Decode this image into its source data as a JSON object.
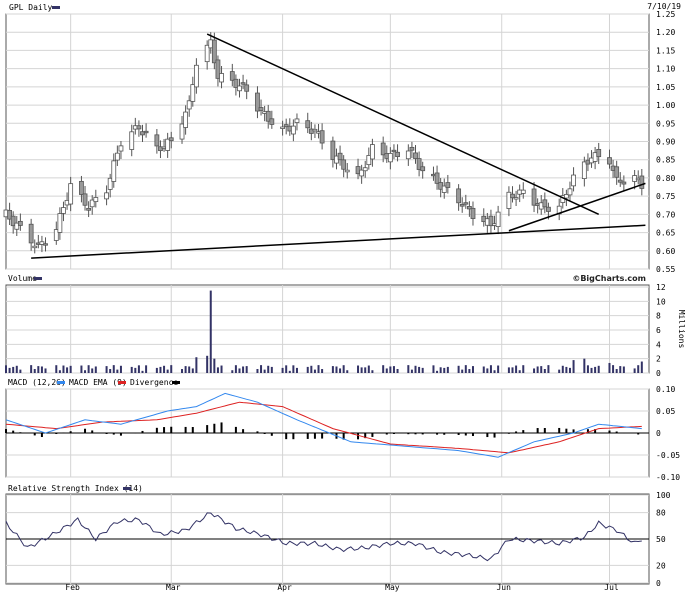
{
  "header": {
    "ticker_label": "GPL Daily",
    "date": "7/10/19",
    "source": "©BigCharts.com"
  },
  "legend_colors": {
    "price": "#333366",
    "volume": "#333366",
    "macd": "#3388ee",
    "macd_ema": "#dd2222",
    "divergence": "#000000",
    "rsi": "#333366"
  },
  "chart_data": [
    {
      "type": "candlestick",
      "title": "GPL Daily",
      "ylim": [
        0.55,
        1.25
      ],
      "y_ticks": [
        "1.25",
        "1.20",
        "1.15",
        "1.10",
        "1.05",
        "1.00",
        "0.95",
        "0.90",
        "0.85",
        "0.80",
        "0.75",
        "0.70",
        "0.65",
        "0.60",
        "0.55"
      ],
      "x_ticks": [
        "Feb",
        "Mar",
        "Apr",
        "May",
        "Jun",
        "Jul"
      ],
      "grid": true,
      "series_points": [
        {
          "date": "2019-01-14",
          "close": 0.7
        },
        {
          "date": "2019-01-18",
          "close": 0.66
        },
        {
          "date": "2019-01-23",
          "close": 0.61
        },
        {
          "date": "2019-01-28",
          "close": 0.66
        },
        {
          "date": "2019-02-01",
          "close": 0.78
        },
        {
          "date": "2019-02-06",
          "close": 0.72
        },
        {
          "date": "2019-02-11",
          "close": 0.77
        },
        {
          "date": "2019-02-15",
          "close": 0.9
        },
        {
          "date": "2019-02-20",
          "close": 0.94
        },
        {
          "date": "2019-02-25",
          "close": 0.88
        },
        {
          "date": "2019-03-01",
          "close": 0.9
        },
        {
          "date": "2019-03-06",
          "close": 1.0
        },
        {
          "date": "2019-03-08",
          "close": 1.12
        },
        {
          "date": "2019-03-12",
          "close": 1.17
        },
        {
          "date": "2019-03-14",
          "close": 1.08
        },
        {
          "date": "2019-03-19",
          "close": 1.06
        },
        {
          "date": "2019-03-22",
          "close": 1.04
        },
        {
          "date": "2019-03-26",
          "close": 0.98
        },
        {
          "date": "2019-04-01",
          "close": 0.93
        },
        {
          "date": "2019-04-05",
          "close": 0.95
        },
        {
          "date": "2019-04-10",
          "close": 0.93
        },
        {
          "date": "2019-04-15",
          "close": 0.86
        },
        {
          "date": "2019-04-22",
          "close": 0.8
        },
        {
          "date": "2019-04-26",
          "close": 0.88
        },
        {
          "date": "2019-05-01",
          "close": 0.86
        },
        {
          "date": "2019-05-06",
          "close": 0.88
        },
        {
          "date": "2019-05-10",
          "close": 0.82
        },
        {
          "date": "2019-05-15",
          "close": 0.78
        },
        {
          "date": "2019-05-20",
          "close": 0.74
        },
        {
          "date": "2019-05-24",
          "close": 0.7
        },
        {
          "date": "2019-05-29",
          "close": 0.67
        },
        {
          "date": "2019-06-03",
          "close": 0.75
        },
        {
          "date": "2019-06-07",
          "close": 0.76
        },
        {
          "date": "2019-06-12",
          "close": 0.72
        },
        {
          "date": "2019-06-17",
          "close": 0.72
        },
        {
          "date": "2019-06-21",
          "close": 0.8
        },
        {
          "date": "2019-06-26",
          "close": 0.86
        },
        {
          "date": "2019-07-01",
          "close": 0.85
        },
        {
          "date": "2019-07-03",
          "close": 0.79
        },
        {
          "date": "2019-07-08",
          "close": 0.8
        },
        {
          "date": "2019-07-10",
          "close": 0.78
        }
      ],
      "trend_lines": [
        {
          "from": {
            "date": "2019-01-21",
            "price": 0.58
          },
          "to": {
            "date": "2019-07-11",
            "price": 0.67
          }
        },
        {
          "from": {
            "date": "2019-03-11",
            "price": 1.195
          },
          "to": {
            "date": "2019-06-28",
            "price": 0.7
          }
        },
        {
          "from": {
            "date": "2019-06-03",
            "price": 0.655
          },
          "to": {
            "date": "2019-07-11",
            "price": 0.785
          }
        }
      ]
    },
    {
      "type": "bar",
      "title": "Volume",
      "ylabel": "Millions",
      "ylim": [
        0,
        12
      ],
      "y_ticks": [
        "12",
        "10",
        "8",
        "6",
        "4",
        "2",
        "0"
      ],
      "x": [
        "2019-03-08",
        "2019-03-11",
        "2019-03-12",
        "2019-03-13",
        "2019-02-01",
        "2019-05-15",
        "2019-06-21",
        "2019-06-24",
        "2019-07-01",
        "2019-07-10"
      ],
      "values": [
        2.2,
        2.4,
        11.5,
        2.0,
        1.0,
        0.8,
        1.8,
        2.0,
        1.4,
        1.6
      ],
      "baseline_volume_range": [
        0.3,
        1.1
      ]
    },
    {
      "type": "line",
      "title": "MACD (12,26)",
      "ylim": [
        -0.1,
        0.1
      ],
      "y_ticks": [
        "0.10",
        "0.05",
        "0",
        "-0.05",
        "-0.10"
      ],
      "series": [
        {
          "name": "MACD (12,26)",
          "points": [
            {
              "date": "2019-01-14",
              "v": 0.03
            },
            {
              "date": "2019-01-25",
              "v": 0.0
            },
            {
              "date": "2019-02-05",
              "v": 0.03
            },
            {
              "date": "2019-02-15",
              "v": 0.02
            },
            {
              "date": "2019-02-28",
              "v": 0.05
            },
            {
              "date": "2019-03-08",
              "v": 0.06
            },
            {
              "date": "2019-03-16",
              "v": 0.09
            },
            {
              "date": "2019-03-25",
              "v": 0.07
            },
            {
              "date": "2019-04-05",
              "v": 0.03
            },
            {
              "date": "2019-04-20",
              "v": -0.02
            },
            {
              "date": "2019-05-05",
              "v": -0.03
            },
            {
              "date": "2019-05-20",
              "v": -0.04
            },
            {
              "date": "2019-05-31",
              "v": -0.055
            },
            {
              "date": "2019-06-10",
              "v": -0.02
            },
            {
              "date": "2019-06-21",
              "v": 0.0
            },
            {
              "date": "2019-06-28",
              "v": 0.02
            },
            {
              "date": "2019-07-10",
              "v": 0.01
            }
          ]
        },
        {
          "name": "EMA (9)",
          "points": [
            {
              "date": "2019-01-14",
              "v": 0.02
            },
            {
              "date": "2019-01-28",
              "v": 0.01
            },
            {
              "date": "2019-02-10",
              "v": 0.025
            },
            {
              "date": "2019-02-25",
              "v": 0.03
            },
            {
              "date": "2019-03-08",
              "v": 0.045
            },
            {
              "date": "2019-03-20",
              "v": 0.07
            },
            {
              "date": "2019-04-01",
              "v": 0.06
            },
            {
              "date": "2019-04-15",
              "v": 0.01
            },
            {
              "date": "2019-05-01",
              "v": -0.025
            },
            {
              "date": "2019-05-20",
              "v": -0.035
            },
            {
              "date": "2019-06-03",
              "v": -0.045
            },
            {
              "date": "2019-06-17",
              "v": -0.02
            },
            {
              "date": "2019-06-28",
              "v": 0.01
            },
            {
              "date": "2019-07-10",
              "v": 0.015
            }
          ]
        }
      ],
      "divergence_label": "Divergence"
    },
    {
      "type": "line",
      "title": "Relative Strength Index (14)",
      "ylim": [
        0,
        100
      ],
      "y_ticks": [
        "100",
        "80",
        "50",
        "20",
        "0"
      ],
      "reference_line": 50,
      "series": [
        {
          "name": "Relative Strength Index (14)",
          "points": [
            {
              "date": "2019-01-14",
              "v": 68
            },
            {
              "date": "2019-01-20",
              "v": 40
            },
            {
              "date": "2019-01-27",
              "v": 55
            },
            {
              "date": "2019-02-03",
              "v": 72
            },
            {
              "date": "2019-02-08",
              "v": 50
            },
            {
              "date": "2019-02-14",
              "v": 70
            },
            {
              "date": "2019-02-20",
              "v": 72
            },
            {
              "date": "2019-02-26",
              "v": 55
            },
            {
              "date": "2019-03-05",
              "v": 60
            },
            {
              "date": "2019-03-12",
              "v": 80
            },
            {
              "date": "2019-03-19",
              "v": 62
            },
            {
              "date": "2019-03-26",
              "v": 55
            },
            {
              "date": "2019-04-02",
              "v": 45
            },
            {
              "date": "2019-04-10",
              "v": 45
            },
            {
              "date": "2019-04-17",
              "v": 38
            },
            {
              "date": "2019-04-24",
              "v": 40
            },
            {
              "date": "2019-05-01",
              "v": 45
            },
            {
              "date": "2019-05-08",
              "v": 45
            },
            {
              "date": "2019-05-15",
              "v": 35
            },
            {
              "date": "2019-05-22",
              "v": 32
            },
            {
              "date": "2019-05-29",
              "v": 27
            },
            {
              "date": "2019-06-03",
              "v": 50
            },
            {
              "date": "2019-06-10",
              "v": 48
            },
            {
              "date": "2019-06-17",
              "v": 45
            },
            {
              "date": "2019-06-24",
              "v": 52
            },
            {
              "date": "2019-06-28",
              "v": 68
            },
            {
              "date": "2019-07-03",
              "v": 60
            },
            {
              "date": "2019-07-08",
              "v": 45
            },
            {
              "date": "2019-07-10",
              "v": 50
            }
          ]
        }
      ]
    }
  ],
  "panels": {
    "volume_label": "Volume",
    "macd_label": "MACD (12,26)",
    "ema_label": "MACD EMA (9)",
    "divergence_label": "Divergence",
    "rsi_label": "Relative Strength Index (14)",
    "millions_label": "Millions"
  }
}
